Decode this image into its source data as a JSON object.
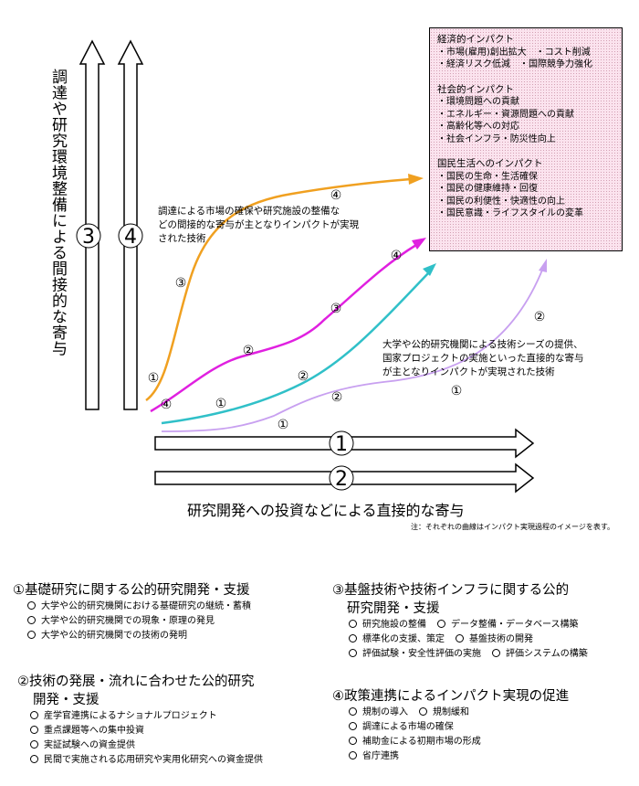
{
  "vertical_axis_label": "調達や研究環境整備による間接的な寄与",
  "horizontal_axis_label": "研究開発への投資などによる直接的な寄与",
  "note": "注：それぞれの曲線はインパクト実現過程のイメージを表す。",
  "arrow_numbers": {
    "v3": "3",
    "v4": "4",
    "h1": "1",
    "h2": "2"
  },
  "indirect_caption": [
    "調達による市場の確保や研究施設の整備な",
    "どの間接的な寄与が主となりインパクトが実現",
    "された技術"
  ],
  "direct_caption": [
    "大学や公的研究機関による技術シーズの提供、",
    "国家プロジェクトの実施といった直接的な寄与",
    "が主となりインパクトが実現された技術"
  ],
  "curve_markers": {
    "orange": [
      "①",
      "③",
      "④"
    ],
    "magenta": [
      "④",
      "②",
      "③",
      "④"
    ],
    "teal": [
      "①",
      "②"
    ],
    "lilac": [
      "①",
      "②",
      "①",
      "②"
    ]
  },
  "impact_box": {
    "economic": {
      "heading": "経済的インパクト",
      "lines": [
        "・市場(雇用)創出拡大　・コスト削減",
        "・経済リスク低減　・国際競争力強化"
      ]
    },
    "social": {
      "heading": "社会的インパクト",
      "lines": [
        "・環境問題への貢献",
        "・エネルギー・資源問題への貢献",
        "・高齢化等への対応",
        "・社会インフラ・防災性向上"
      ]
    },
    "life": {
      "heading": "国民生活へのインパクト",
      "lines": [
        "・国民の生命・生活確保",
        "・国民の健康維持・回復",
        "・国民の利便性・快適性の向上",
        "・国民意識・ライフスタイルの変革"
      ]
    }
  },
  "legend": {
    "l1": {
      "title": "①基礎研究に関する公的研究開発・支援",
      "items": [
        "大学や公的研究機関における基礎研究の継続・蓄積",
        "大学や公的研究機関での現象・原理の発見",
        "大学や公的研究機関での技術の発明"
      ]
    },
    "l2": {
      "title": [
        "②技術の発展・流れに合わせた公的研究",
        "開発・支援"
      ],
      "items": [
        "産学官連携によるナショナルプロジェクト",
        "重点課題等への集中投資",
        "実証試験への資金提供",
        "民間で実施される応用研究や実用化研究への資金提供"
      ]
    },
    "l3": {
      "title": [
        "③基盤技術や技術インフラに関する公的",
        "研究開発・支援"
      ],
      "items": [
        [
          "研究施設の整備",
          "データ整備・データベース構築"
        ],
        [
          "標準化の支援、策定",
          "基盤技術の開発"
        ],
        [
          "評価試験・安全性評価の実施",
          "評価システムの構築"
        ]
      ]
    },
    "l4": {
      "title": "④政策連携によるインパクト実現の促進",
      "items": [
        [
          "規制の導入",
          "規制緩和"
        ],
        [
          "調達による市場の確保"
        ],
        [
          "補助金による初期市場の形成"
        ],
        [
          "省庁連携"
        ]
      ]
    }
  },
  "colors": {
    "orange": "#f0a020",
    "magenta": "#e020e0",
    "teal": "#30c0c8",
    "lilac": "#c8a0f0"
  }
}
